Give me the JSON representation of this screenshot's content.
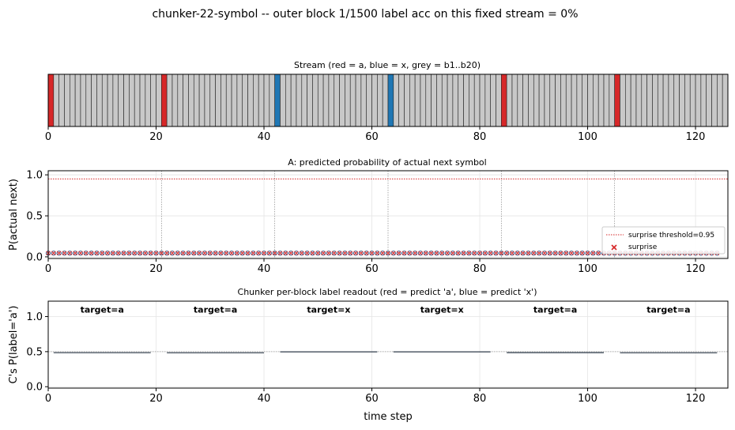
{
  "figure": {
    "suptitle": "chunker-22-symbol  --  outer block 1/1500   label acc on this fixed stream = 0%"
  },
  "colors": {
    "a": "#d62728",
    "x": "#1f77b4",
    "grey": "#c8c8c8",
    "target_a": "#d62728",
    "target_x": "#1f77b4"
  },
  "chart_data": [
    {
      "type": "heatmap",
      "title": "Stream (red = a, blue = x, grey = b1..b20)",
      "xlim": [
        0,
        126
      ],
      "xticks": [
        0,
        20,
        40,
        60,
        80,
        100,
        120
      ],
      "n_steps": 126,
      "special_positions": [
        {
          "x": 0,
          "symbol": "a"
        },
        {
          "x": 21,
          "symbol": "a"
        },
        {
          "x": 42,
          "symbol": "x"
        },
        {
          "x": 63,
          "symbol": "x"
        },
        {
          "x": 84,
          "symbol": "a"
        },
        {
          "x": 105,
          "symbol": "a"
        }
      ]
    },
    {
      "type": "scatter",
      "title": "A: predicted probability of actual next symbol",
      "ylabel": "P(actual next)",
      "xlim": [
        0,
        126
      ],
      "ylim": [
        -0.02,
        1.05
      ],
      "xticks": [
        0,
        20,
        40,
        60,
        80,
        100,
        120
      ],
      "yticks": [
        0.0,
        0.5,
        1.0
      ],
      "grid": true,
      "threshold": 0.95,
      "point_value": 0.045,
      "n_points": 125,
      "boundary_lines": [
        21,
        42,
        63,
        84,
        105
      ],
      "legend": {
        "position": "lower right",
        "entries": [
          "surprise threshold=0.95",
          "surprise"
        ]
      }
    },
    {
      "type": "line",
      "title": "Chunker per-block label readout (red = predict 'a', blue = predict 'x')",
      "xlabel": "time step",
      "ylabel": "C's P(label='a')",
      "xlim": [
        0,
        126
      ],
      "ylim": [
        -0.02,
        1.22
      ],
      "xticks": [
        0,
        20,
        40,
        60,
        80,
        100,
        120
      ],
      "yticks": [
        0.0,
        0.5,
        1.0
      ],
      "grid": true,
      "segments": [
        {
          "x_start": 1,
          "x_end": 19,
          "value": 0.485,
          "target": "target=a",
          "target_symbol": "a"
        },
        {
          "x_start": 22,
          "x_end": 40,
          "value": 0.484,
          "target": "target=a",
          "target_symbol": "a"
        },
        {
          "x_start": 43,
          "x_end": 61,
          "value": 0.497,
          "target": "target=x",
          "target_symbol": "x"
        },
        {
          "x_start": 64,
          "x_end": 82,
          "value": 0.497,
          "target": "target=x",
          "target_symbol": "x"
        },
        {
          "x_start": 85,
          "x_end": 103,
          "value": 0.486,
          "target": "target=a",
          "target_symbol": "a"
        },
        {
          "x_start": 106,
          "x_end": 124,
          "value": 0.484,
          "target": "target=a",
          "target_symbol": "a"
        }
      ]
    }
  ]
}
